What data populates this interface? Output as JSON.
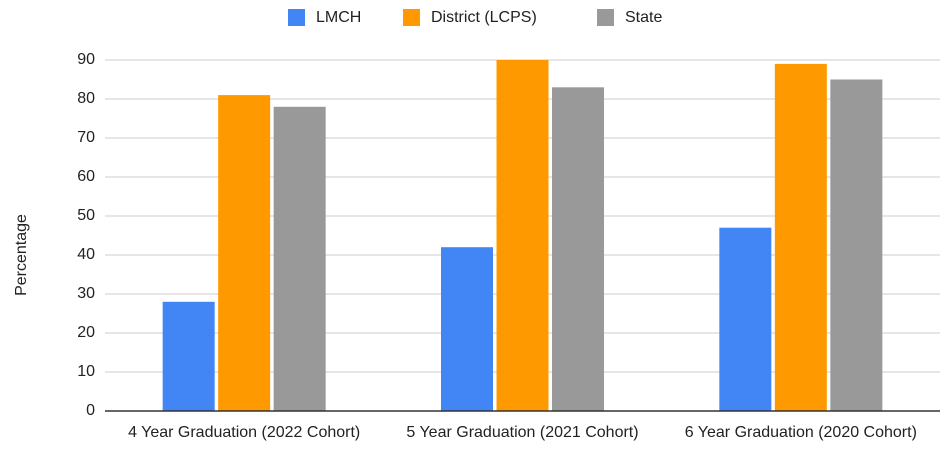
{
  "chart_data": {
    "type": "bar",
    "categories": [
      "4 Year Graduation (2022 Cohort)",
      "5 Year Graduation (2021 Cohort)",
      "6 Year Graduation (2020 Cohort)"
    ],
    "series": [
      {
        "name": "LMCH",
        "color": "#4285f4",
        "values": [
          28,
          42,
          47
        ]
      },
      {
        "name": "District (LCPS)",
        "color": "#ff9900",
        "values": [
          81,
          90,
          89
        ]
      },
      {
        "name": "State",
        "color": "#999999",
        "values": [
          78,
          83,
          85
        ]
      }
    ],
    "y_label": "Percentage",
    "ylim": [
      0,
      90
    ],
    "yticks": [
      0,
      10,
      20,
      30,
      40,
      50,
      60,
      70,
      80,
      90
    ],
    "grid": true,
    "legend": "top"
  }
}
